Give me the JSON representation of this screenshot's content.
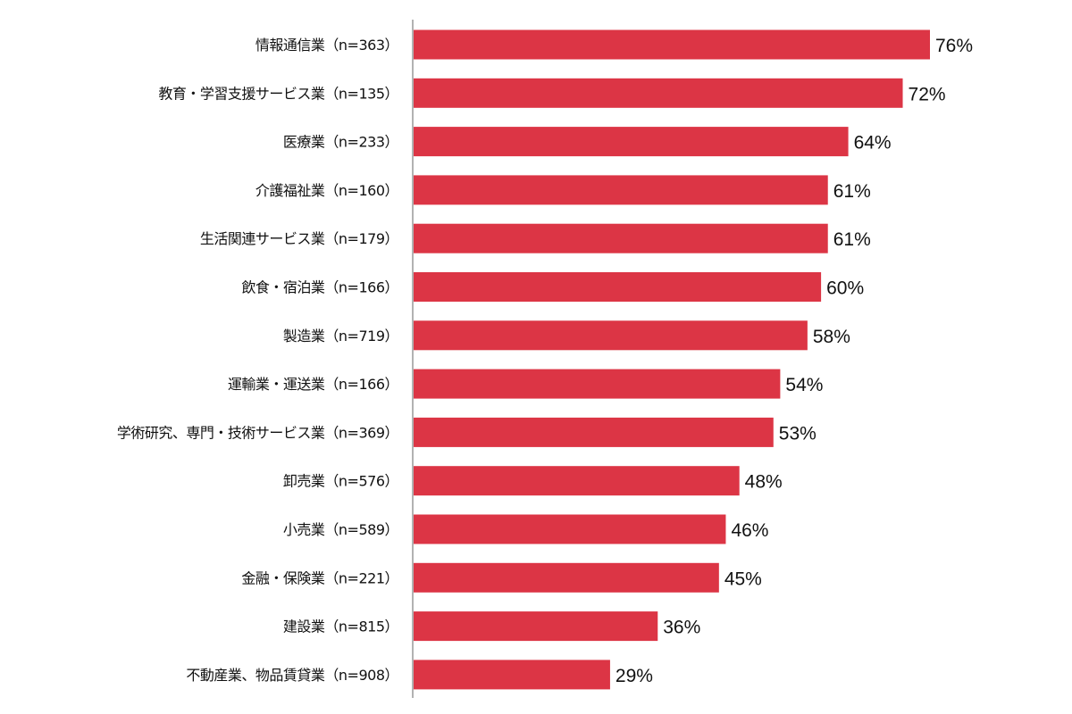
{
  "chart_data": {
    "type": "bar",
    "orientation": "horizontal",
    "categories": [
      "情報通信業（n=363）",
      "教育・学習支援サービス業（n=135）",
      "医療業（n=233）",
      "介護福祉業（n=160）",
      "生活関連サービス業（n=179）",
      "飲食・宿泊業（n=166）",
      "製造業（n=719）",
      "運輸業・運送業（n=166）",
      "学術研究、専門・技術サービス業（n=369）",
      "卸売業（n=576）",
      "小売業（n=589）",
      "金融・保険業（n=221）",
      "建設業（n=815）",
      "不動産業、物品賃貸業（n=908）"
    ],
    "values": [
      76,
      72,
      64,
      61,
      61,
      60,
      58,
      54,
      53,
      48,
      46,
      45,
      36,
      29
    ],
    "data_labels": [
      "76%",
      "72%",
      "64%",
      "61%",
      "61%",
      "60%",
      "58%",
      "54%",
      "53%",
      "48%",
      "46%",
      "45%",
      "36%",
      "29%"
    ],
    "value_unit": "%",
    "xlim": [
      0,
      100
    ],
    "grid": false,
    "legend": "none",
    "bar_color": "#dc3545",
    "axis_color": "#999999"
  }
}
